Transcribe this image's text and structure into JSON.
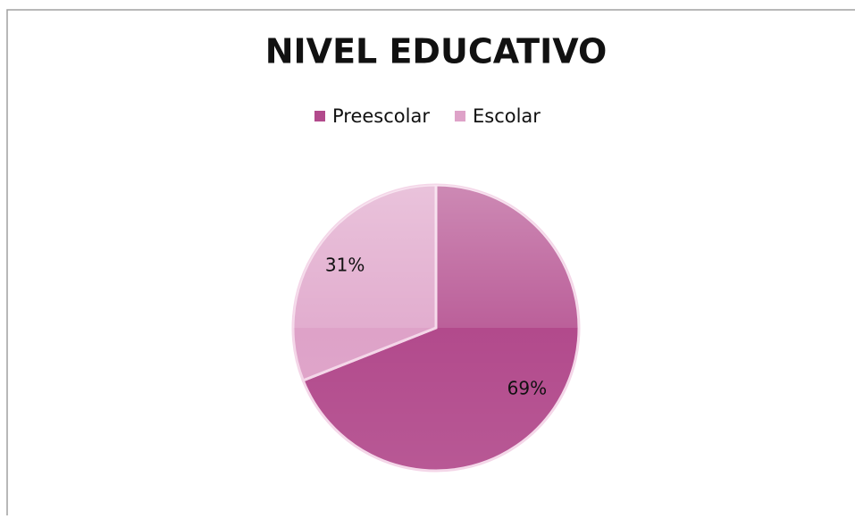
{
  "chart_data": {
    "type": "pie",
    "title": "NIVEL EDUCATIVO",
    "categories": [
      "Preescolar",
      "Escolar"
    ],
    "values": [
      69,
      31
    ],
    "value_labels": [
      "69%",
      "31%"
    ],
    "colors": [
      "#b24a8c",
      "#dea2c8"
    ],
    "legend": "top"
  }
}
